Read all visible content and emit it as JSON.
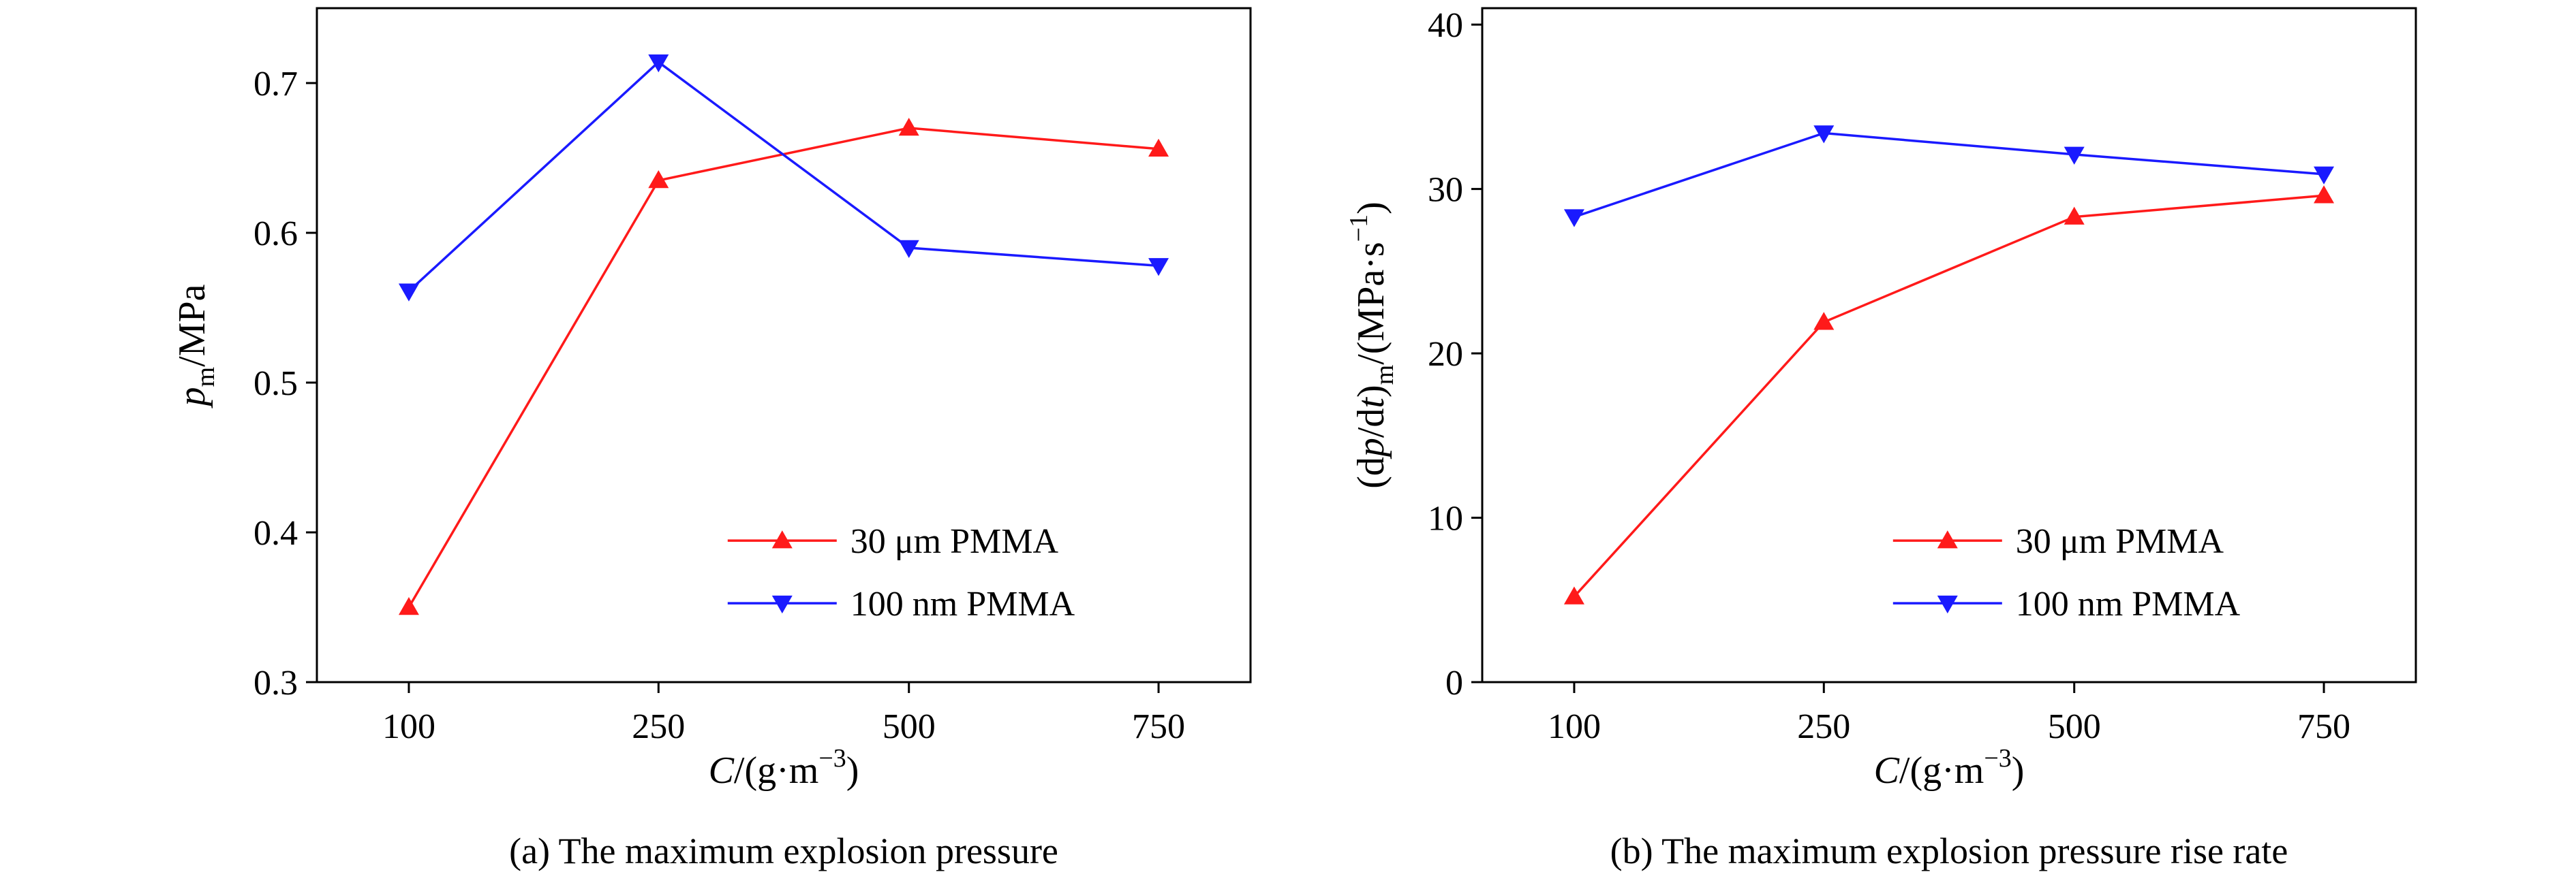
{
  "chart_data": [
    {
      "id": "a",
      "type": "line",
      "caption": "(a) The maximum explosion pressure",
      "xlabel": "C/(g·m⁻³)",
      "ylabel": "p_m/MPa",
      "ylabel_parts": {
        "var": "p",
        "sub": "m",
        "unit": "/MPa"
      },
      "xlabel_parts": {
        "var": "C",
        "unit": "/(g·m",
        "sup": "−3",
        "close": ")"
      },
      "categories": [
        "100",
        "250",
        "500",
        "750"
      ],
      "ylim": [
        0.3,
        0.75
      ],
      "yticks": [
        0.3,
        0.4,
        0.5,
        0.6,
        0.7
      ],
      "ytick_labels": [
        "0.3",
        "0.4",
        "0.5",
        "0.6",
        "0.7"
      ],
      "legend_position": "lower-right",
      "series": [
        {
          "name": "30 μm PMMA",
          "color": "#ff1a1a",
          "marker": "triangle-up",
          "values": [
            0.35,
            0.635,
            0.67,
            0.656
          ]
        },
        {
          "name": "100 nm PMMA",
          "color": "#1a1aff",
          "marker": "triangle-down",
          "values": [
            0.561,
            0.714,
            0.59,
            0.578
          ]
        }
      ]
    },
    {
      "id": "b",
      "type": "line",
      "caption": "(b) The maximum explosion pressure rise rate",
      "xlabel": "C/(g·m⁻³)",
      "ylabel": "(dp/dt)_m/(MPa·s⁻¹)",
      "ylabel_parts": {
        "pre": "(d",
        "var": "p",
        "mid": "/d",
        "var2": "t",
        "close": ")",
        "sub": "m",
        "unit": "/(MPa·s",
        "sup": "−1",
        "end": ")"
      },
      "xlabel_parts": {
        "var": "C",
        "unit": "/(g·m",
        "sup": "−3",
        "close": ")"
      },
      "categories": [
        "100",
        "250",
        "500",
        "750"
      ],
      "ylim": [
        0,
        41
      ],
      "yticks": [
        0,
        10,
        20,
        30,
        40
      ],
      "ytick_labels": [
        "0",
        "10",
        "20",
        "30",
        "40"
      ],
      "legend_position": "lower-right",
      "series": [
        {
          "name": "30 μm PMMA",
          "color": "#ff1a1a",
          "marker": "triangle-up",
          "values": [
            5.2,
            21.9,
            28.3,
            29.6
          ]
        },
        {
          "name": "100 nm PMMA",
          "color": "#1a1aff",
          "marker": "triangle-down",
          "values": [
            28.3,
            33.4,
            32.1,
            30.9
          ]
        }
      ]
    }
  ]
}
